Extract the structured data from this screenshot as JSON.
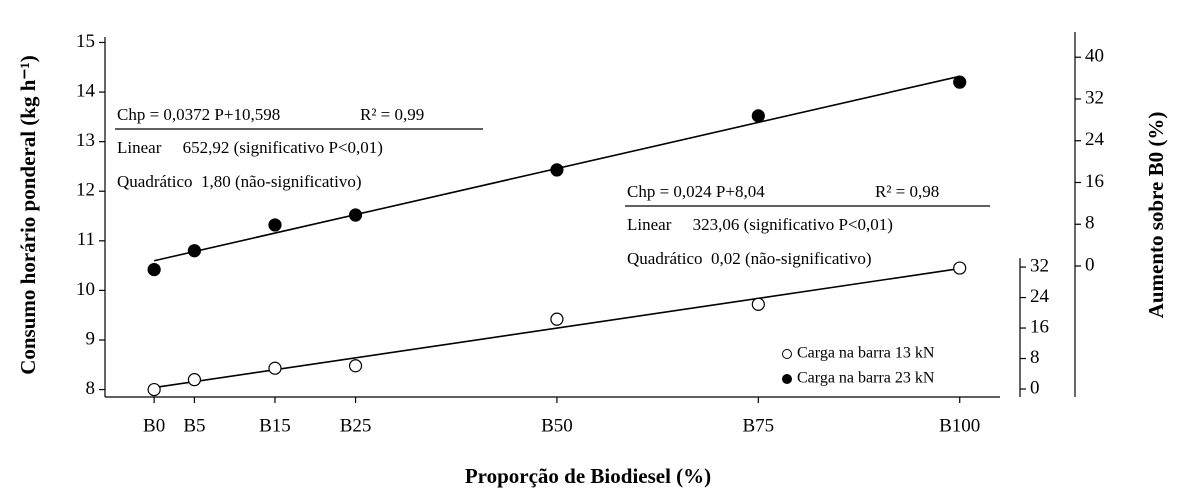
{
  "chart_data": {
    "type": "scatter",
    "x_label": "Proporção de Biodiesel (%)",
    "y_label": "Consumo horário ponderal (kg h⁻¹)",
    "y2_label": "Aumento sobre B0 (%)",
    "x": [
      0,
      5,
      15,
      25,
      50,
      75,
      100
    ],
    "xlim": [
      -6.1,
      105
    ],
    "xticks": [
      {
        "value": 0,
        "label": "B0"
      },
      {
        "value": 5,
        "label": "B5"
      },
      {
        "value": 15,
        "label": "B15"
      },
      {
        "value": 25,
        "label": "B25"
      },
      {
        "value": 50,
        "label": "B50"
      },
      {
        "value": 75,
        "label": "B75"
      },
      {
        "value": 100,
        "label": "B100"
      }
    ],
    "ylim": [
      7.85,
      15.05
    ],
    "yticks": [
      8,
      9,
      10,
      11,
      12,
      13,
      14,
      15
    ],
    "y2lim": [
      -2.1,
      91.6
    ],
    "y2ticks": [
      0,
      8,
      16,
      24,
      32
    ],
    "y3lim": [
      -25.1,
      43.3
    ],
    "y3ticks": [
      0,
      8,
      16,
      24,
      32,
      40
    ],
    "legend": "lower right",
    "series": [
      {
        "name": "Carga na barra 13 kN",
        "color": "#000000",
        "filled": false,
        "values": [
          8.0,
          8.2,
          8.43,
          8.48,
          9.42,
          9.72,
          10.45
        ],
        "fit_x": [
          0,
          100
        ],
        "fit_values": [
          8.04,
          10.44
        ]
      },
      {
        "name": "Carga na barra 23 kN",
        "color": "#000000",
        "filled": true,
        "values": [
          10.42,
          10.8,
          11.32,
          11.52,
          12.43,
          13.52,
          14.2
        ],
        "fit_x": [
          0,
          100
        ],
        "fit_values": [
          10.598,
          14.318
        ]
      }
    ],
    "annotations": [
      {
        "equation": "Chp = 0,0372 P+10,598",
        "r2": "R² = 0,99",
        "lines": [
          "Linear     652,92 (significativo P<0,01)",
          "Quadrático  1,80 (não-significativo)"
        ]
      },
      {
        "equation": "Chp = 0,024 P+8,04",
        "r2": "R² = 0,98",
        "lines": [
          "Linear     323,06 (significativo P<0,01)",
          "Quadrático  0,02 (não-significativo)"
        ]
      }
    ]
  }
}
